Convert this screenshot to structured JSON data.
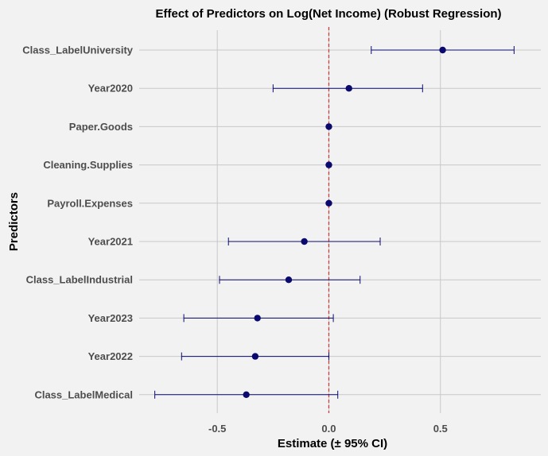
{
  "chart_data": {
    "type": "forest",
    "title": "Effect of Predictors on Log(Net Income) (Robust Regression)",
    "xlabel": "Estimate (± 95% CI)",
    "ylabel": "Predictors",
    "xlim": [
      -0.85,
      0.95
    ],
    "xticks": [
      -0.5,
      0.0,
      0.5
    ],
    "xtick_labels": [
      "-0.5",
      "0.0",
      "0.5"
    ],
    "reference_line": 0,
    "grid": true,
    "point_color": "#0a0a6e",
    "ci_color": "#0a0a6e",
    "reference_line_color": "#cc3333",
    "predictors": [
      {
        "name": "Class_LabelUniversity",
        "estimate": 0.51,
        "ci_low": 0.19,
        "ci_high": 0.83
      },
      {
        "name": "Year2020",
        "estimate": 0.09,
        "ci_low": -0.25,
        "ci_high": 0.42
      },
      {
        "name": "Paper.Goods",
        "estimate": 0.0,
        "ci_low": 0.0,
        "ci_high": 0.0
      },
      {
        "name": "Cleaning.Supplies",
        "estimate": 0.0,
        "ci_low": 0.0,
        "ci_high": 0.0
      },
      {
        "name": "Payroll.Expenses",
        "estimate": 0.0,
        "ci_low": 0.0,
        "ci_high": 0.0
      },
      {
        "name": "Year2021",
        "estimate": -0.11,
        "ci_low": -0.45,
        "ci_high": 0.23
      },
      {
        "name": "Class_LabelIndustrial",
        "estimate": -0.18,
        "ci_low": -0.49,
        "ci_high": 0.14
      },
      {
        "name": "Year2023",
        "estimate": -0.32,
        "ci_low": -0.65,
        "ci_high": 0.02
      },
      {
        "name": "Year2022",
        "estimate": -0.33,
        "ci_low": -0.66,
        "ci_high": 0.0
      },
      {
        "name": "Class_LabelMedical",
        "estimate": -0.37,
        "ci_low": -0.78,
        "ci_high": 0.04
      }
    ]
  }
}
